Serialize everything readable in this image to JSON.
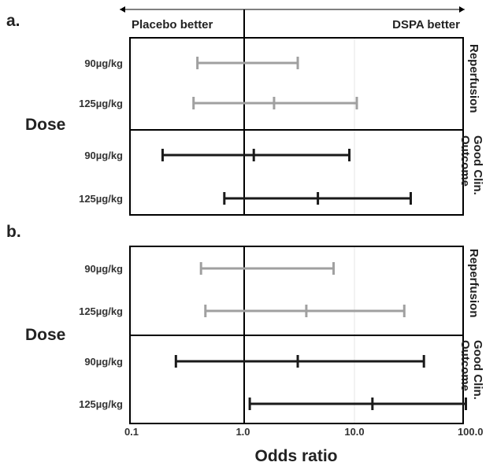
{
  "header": {
    "left_label": "Placebo better",
    "right_label": "DSPA better"
  },
  "chart_data": [
    {
      "type": "forest",
      "panel_label": "a.",
      "y_group_label": "Dose",
      "xscale": "log",
      "xlim": [
        0.1,
        100.0
      ],
      "reference_line": 1.0,
      "grid": "vertical at 0.1, 10.0 (light gray)",
      "groups": [
        {
          "name": "Reperfusion",
          "color": "#a0a0a0",
          "rows": [
            {
              "label": "90µg/kg",
              "lower": 0.39,
              "estimate": null,
              "upper": 3.1
            },
            {
              "label": "125µg/kg",
              "lower": 0.36,
              "estimate": 1.9,
              "upper": 10.5
            }
          ]
        },
        {
          "name": "Good Clin. Outcome",
          "color": "#1a1a1a",
          "rows": [
            {
              "label": "90µg/kg",
              "lower": 0.19,
              "estimate": 1.25,
              "upper": 9.0
            },
            {
              "label": "125µg/kg",
              "lower": 0.68,
              "estimate": 4.7,
              "upper": 32.0
            }
          ]
        }
      ]
    },
    {
      "type": "forest",
      "panel_label": "b.",
      "y_group_label": "Dose",
      "xscale": "log",
      "xlim": [
        0.1,
        100.0
      ],
      "reference_line": 1.0,
      "xlabel": "Odds ratio",
      "xticks": [
        {
          "value": 0.1,
          "label": "0.1"
        },
        {
          "value": 1.0,
          "label": "1.0"
        },
        {
          "value": 10.0,
          "label": "10.0"
        },
        {
          "value": 100.0,
          "label": "100.0"
        }
      ],
      "groups": [
        {
          "name": "Reperfusion",
          "color": "#a0a0a0",
          "rows": [
            {
              "label": "90µg/kg",
              "lower": 0.42,
              "estimate": null,
              "upper": 6.5
            },
            {
              "label": "125µg/kg",
              "lower": 0.46,
              "estimate": 3.7,
              "upper": 28.0
            }
          ]
        },
        {
          "name": "Good Clin. Outcome",
          "color": "#1a1a1a",
          "rows": [
            {
              "label": "90µg/kg",
              "lower": 0.25,
              "estimate": 3.1,
              "upper": 42.0
            },
            {
              "label": "125µg/kg",
              "lower": 1.15,
              "estimate": 14.5,
              "upper": 100.0
            }
          ]
        }
      ]
    }
  ]
}
